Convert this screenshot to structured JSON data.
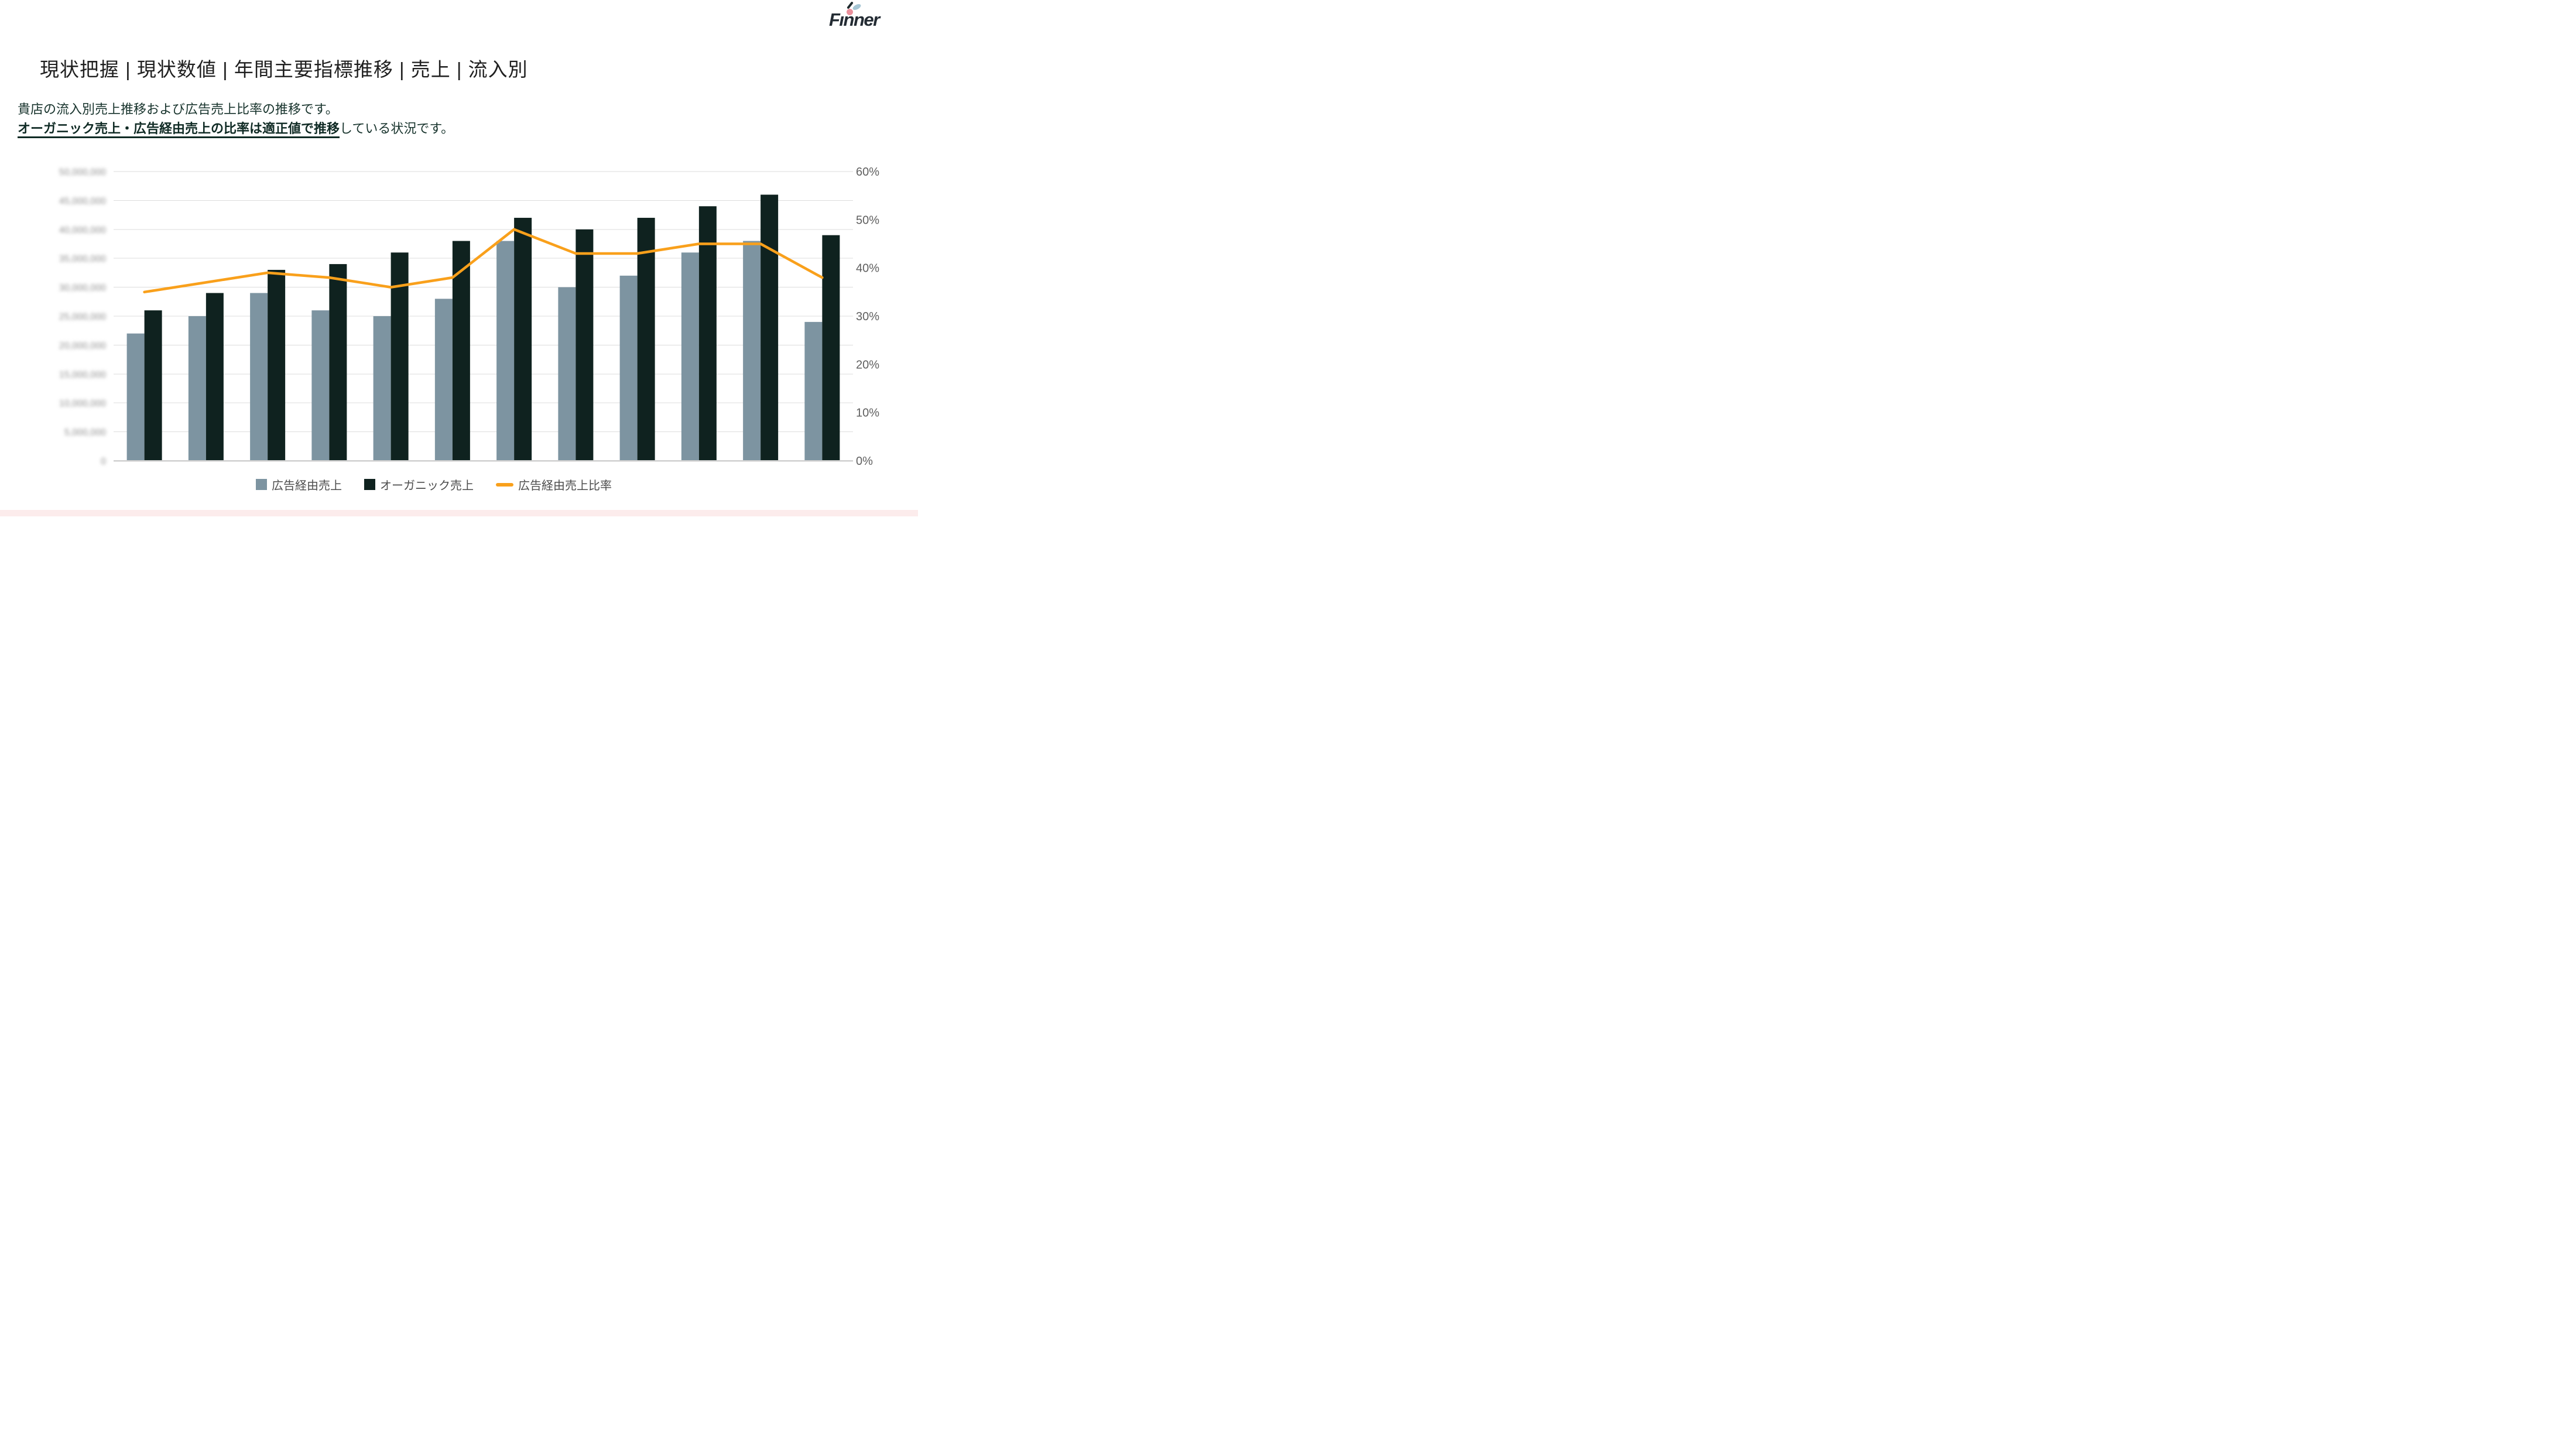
{
  "header": {
    "title": "現状把握 | 現状数値 | 年間主要指標推移 | 売上 | 流入別",
    "logo_text": "Fınner",
    "logo_colors": {
      "text": "#232b33",
      "dot": "#eb909c",
      "leaf": "#a6c6d4"
    }
  },
  "description": {
    "line1": "貴店の流入別売上推移および広告売上比率の推移です。",
    "line2_bold": "オーガニック売上・広告経由売上の比率は適正値で推移",
    "line2_rest": "している状況です。"
  },
  "chart_data": {
    "type": "combo-bar-line",
    "categories": [
      "",
      "",
      "",
      "",
      "",
      "",
      "",
      "",
      "",
      "",
      "",
      ""
    ],
    "series": [
      {
        "name": "広告経由売上",
        "type": "bar",
        "axis": "left",
        "color": "#7d94a1",
        "values": [
          22000000,
          25000000,
          29000000,
          26000000,
          25000000,
          28000000,
          38000000,
          30000000,
          32000000,
          36000000,
          38000000,
          24000000
        ]
      },
      {
        "name": "オーガニック売上",
        "type": "bar",
        "axis": "left",
        "color": "#0f221f",
        "values": [
          26000000,
          29000000,
          33000000,
          34000000,
          36000000,
          38000000,
          42000000,
          40000000,
          42000000,
          44000000,
          46000000,
          39000000
        ]
      },
      {
        "name": "広告経由売上比率",
        "type": "line",
        "axis": "right",
        "color": "#f9a01b",
        "values_percent": [
          35,
          37,
          39,
          38,
          36,
          38,
          48,
          43,
          43,
          45,
          45,
          38
        ]
      }
    ],
    "y_axis_left": {
      "min": 0,
      "max": 50000000,
      "step": 5000000,
      "blurred": true,
      "labels": [
        "50,000,000",
        "45,000,000",
        "40,000,000",
        "35,000,000",
        "30,000,000",
        "25,000,000",
        "20,000,000",
        "15,000,000",
        "10,000,000",
        "5,000,000",
        "0"
      ]
    },
    "y_axis_right": {
      "min": 0,
      "max": 60,
      "step": 10,
      "labels": [
        "60%",
        "50%",
        "40%",
        "30%",
        "20%",
        "10%",
        "0%"
      ]
    },
    "x_axis": {
      "labels_visible": false
    },
    "grid": true,
    "legend_position": "bottom"
  },
  "footer": {
    "accent_color": "#fcecec"
  }
}
